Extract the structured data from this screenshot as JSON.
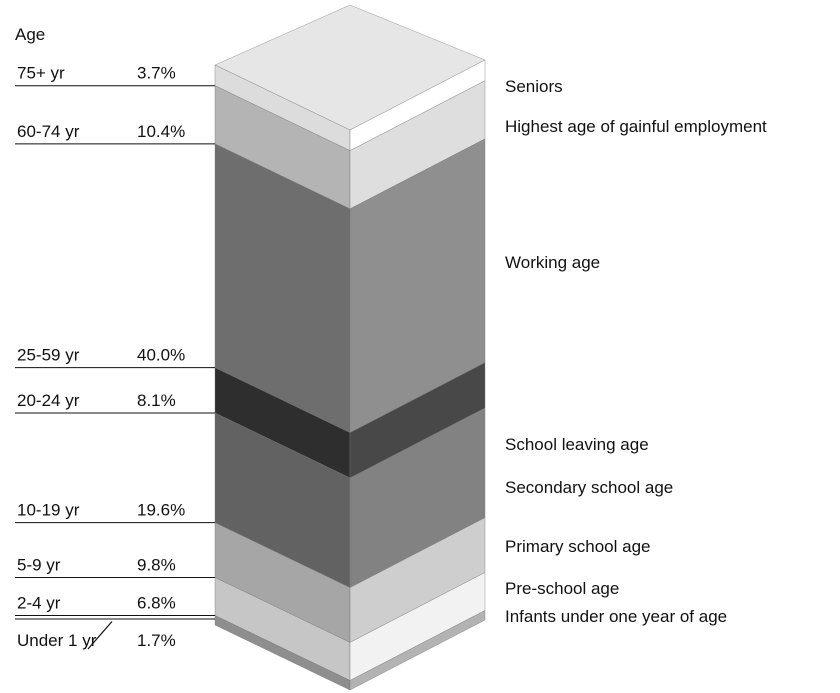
{
  "chart_data": {
    "type": "stacked-column",
    "title": "Age",
    "categories": [
      "75+ yr",
      "60-74 yr",
      "25-59 yr",
      "20-24 yr",
      "10-19 yr",
      "5-9 yr",
      "2-4 yr",
      "Under 1 yr"
    ],
    "values": [
      3.7,
      10.4,
      40.0,
      8.1,
      19.6,
      9.8,
      6.8,
      1.7
    ],
    "value_labels": [
      "3.7%",
      "10.4%",
      "40.0%",
      "8.1%",
      "19.6%",
      "9.8%",
      "6.8%",
      "1.7%"
    ],
    "colors": [
      "#dcdcdc",
      "#b4b4b4",
      "#6e6e6e",
      "#2e2e2e",
      "#626262",
      "#a6a6a6",
      "#c6c6c6",
      "#8e8e8e"
    ],
    "annotations": [
      "Seniors",
      "Highest age of gainful employment",
      "Working age",
      "School leaving age",
      "Secondary school age",
      "Primary school age",
      "Pre-school age",
      "Infants under one year of age"
    ]
  }
}
